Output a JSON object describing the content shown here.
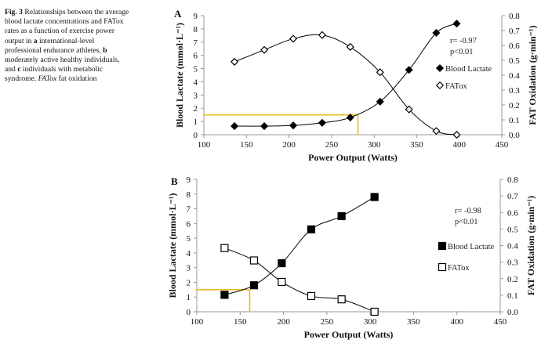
{
  "caption": {
    "fig_label": "Fig. 3",
    "part1": " Relationships between the average blood lactate concentrations and FATox rates as a function of exercise power output in ",
    "a": "a",
    "part2": " international-level professional endurance athletes, ",
    "b": "b",
    "part3": " moderately active healthy individuals, and ",
    "c": "c",
    "part4": " individuals with metabolic syndrome. ",
    "abbr": "FATox",
    "part5": " fat oxidation"
  },
  "colors": {
    "threshold_line": "#e8b923",
    "series": "#000000",
    "axis": "#999999"
  },
  "chart_data": [
    {
      "panel": "A",
      "type": "line",
      "xlabel": "Power Output (Watts)",
      "ylabel": "Blood Lactate (mmol·L⁻¹)",
      "y2label": "FAT Oxidation (g·min⁻¹)",
      "xlim": [
        100,
        450
      ],
      "ylim": [
        0,
        9
      ],
      "y2lim": [
        0,
        0.8
      ],
      "xticks": [
        "100",
        "150",
        "200",
        "250",
        "300",
        "350",
        "400",
        "450"
      ],
      "yticks": [
        "0",
        "1",
        "2",
        "3",
        "4",
        "5",
        "6",
        "7",
        "8",
        "9"
      ],
      "y2ticks": [
        "0.0",
        "0.1",
        "0.2",
        "0.3",
        "0.4",
        "0.5",
        "0.6",
        "0.7",
        "0.8"
      ],
      "annotation": [
        "r= -0.97",
        "p<0.01"
      ],
      "threshold": {
        "lactate": 1.5,
        "power": 281
      },
      "series": [
        {
          "name": "Blood Lactate",
          "axis": "left",
          "marker": "filled-diamond",
          "x": [
            136,
            171,
            205,
            239,
            272,
            307,
            341,
            373,
            397
          ],
          "y": [
            0.65,
            0.65,
            0.7,
            0.9,
            1.3,
            2.5,
            4.9,
            7.7,
            8.4
          ]
        },
        {
          "name": "FATox",
          "axis": "right",
          "marker": "open-diamond",
          "x": [
            136,
            171,
            205,
            239,
            272,
            307,
            341,
            373,
            397
          ],
          "y": [
            0.49,
            0.57,
            0.645,
            0.67,
            0.59,
            0.42,
            0.17,
            0.025,
            0.0
          ]
        }
      ]
    },
    {
      "panel": "B",
      "type": "line",
      "xlabel": "Power Output (Watts)",
      "ylabel": "Blood Lactate (mmol·L⁻¹)",
      "y2label": "FAT Oxidation (g·min⁻¹)",
      "xlim": [
        100,
        450
      ],
      "ylim": [
        0,
        9
      ],
      "y2lim": [
        0,
        0.8
      ],
      "xticks": [
        "100",
        "150",
        "200",
        "250",
        "300",
        "350",
        "400",
        "450"
      ],
      "yticks": [
        "0",
        "1",
        "2",
        "3",
        "4",
        "5",
        "6",
        "7",
        "8",
        "9"
      ],
      "y2ticks": [
        "0.0",
        "0.1",
        "0.2",
        "0.3",
        "0.4",
        "0.5",
        "0.6",
        "0.7",
        "0.8"
      ],
      "annotation": [
        "r= -0.98",
        "p<0.01"
      ],
      "threshold": {
        "lactate": 1.5,
        "power": 161
      },
      "series": [
        {
          "name": "Blood Lactate",
          "axis": "left",
          "marker": "filled-square",
          "x": [
            132,
            166,
            198,
            232,
            267,
            305
          ],
          "y": [
            1.15,
            1.8,
            3.3,
            5.6,
            6.5,
            7.8
          ]
        },
        {
          "name": "FATox",
          "axis": "right",
          "marker": "open-square",
          "x": [
            132,
            166,
            198,
            232,
            267,
            305
          ],
          "y": [
            0.385,
            0.31,
            0.18,
            0.095,
            0.075,
            0.0
          ]
        }
      ]
    }
  ]
}
